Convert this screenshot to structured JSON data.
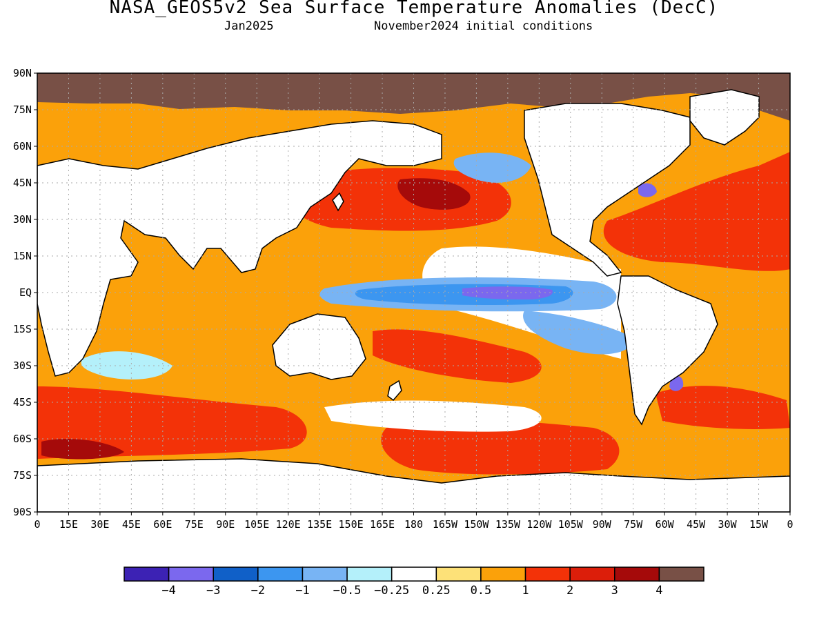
{
  "title": "NASA_GEOS5v2 Sea Surface Temperature Anomalies (DecC)",
  "subtitle_left": "Jan2025",
  "subtitle_right": "November2024 initial conditions",
  "lat_labels": [
    "90N",
    "75N",
    "60N",
    "45N",
    "30N",
    "15N",
    "EQ",
    "15S",
    "30S",
    "45S",
    "60S",
    "75S",
    "90S"
  ],
  "lon_labels": [
    "0",
    "15E",
    "30E",
    "45E",
    "60E",
    "75E",
    "90E",
    "105E",
    "120E",
    "135E",
    "150E",
    "165E",
    "180",
    "165W",
    "150W",
    "135W",
    "120W",
    "105W",
    "90W",
    "75W",
    "60W",
    "45W",
    "30W",
    "15W",
    "0"
  ],
  "colorbar": {
    "colors": [
      "#3c22b4",
      "#7b68ee",
      "#1060c8",
      "#3c96f0",
      "#78b4f4",
      "#b4f0fa",
      "#ffffff",
      "#fde178",
      "#fba10a",
      "#f33208",
      "#dc1e0a",
      "#a50a0a",
      "#785046"
    ],
    "labels": [
      "-4",
      "-3",
      "-2",
      "-1",
      "-0.5",
      "-0.25",
      "0.25",
      "0.5",
      "1",
      "2",
      "3",
      "4"
    ]
  },
  "colors": {
    "land": "#ffffff",
    "no_data": "#785046",
    "grid": "#aaaaaa"
  }
}
